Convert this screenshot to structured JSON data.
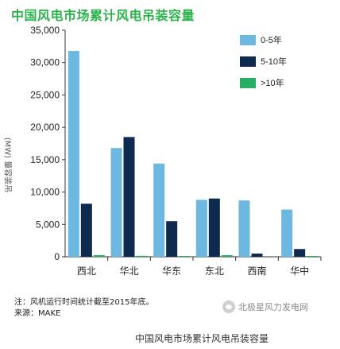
{
  "chart_data": {
    "type": "bar",
    "title": "中国风电市场累计风电吊装容量",
    "ylabel": "(MW) 量容装吊",
    "xlabel": "",
    "categories": [
      "西北",
      "华北",
      "华东",
      "东北",
      "西南",
      "华中"
    ],
    "series": [
      {
        "name": "0-5年",
        "color": "#6db8e0",
        "values": [
          31800,
          16800,
          14400,
          8800,
          8700,
          7300
        ]
      },
      {
        "name": "5-10年",
        "color": "#0e2a4f",
        "values": [
          8200,
          18500,
          5500,
          9000,
          500,
          1200
        ]
      },
      {
        "name": ">10年",
        "color": "#27ae60",
        "values": [
          250,
          150,
          100,
          250,
          0,
          50
        ]
      }
    ],
    "ylim": [
      0,
      35000
    ],
    "yticks": [
      0,
      5000,
      10000,
      15000,
      20000,
      25000,
      30000,
      35000
    ],
    "ytick_labels": [
      "0",
      "5,000",
      "10,000",
      "15,000",
      "20,000",
      "25,000",
      "30,000",
      "35,000"
    ],
    "grid": false,
    "legend_position": "top-right"
  },
  "notes": {
    "line1": "注：风机运行时间统计截至2015年底。",
    "line2": "来源：MAKE"
  },
  "watermark": "北极星风力发电网",
  "caption": "中国风电市场累计风电吊装容量"
}
